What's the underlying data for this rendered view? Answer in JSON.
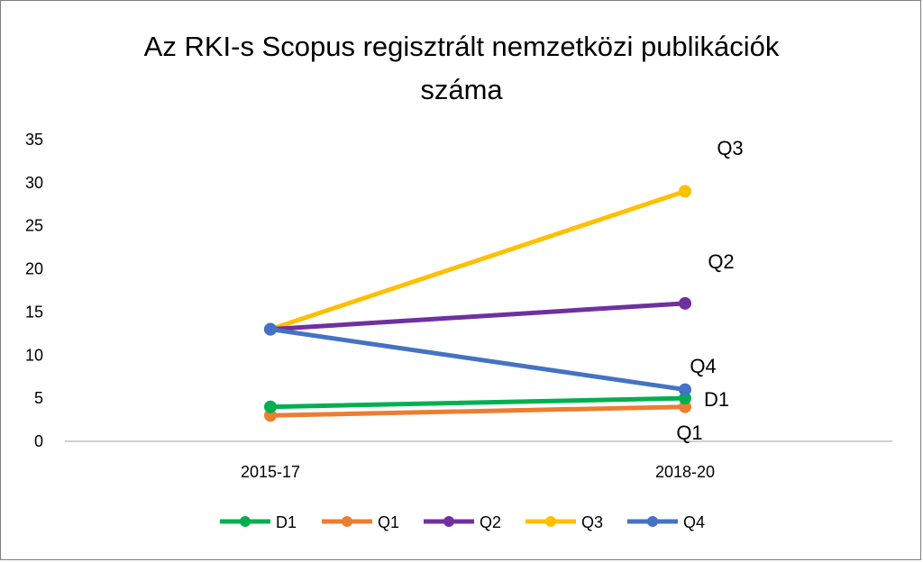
{
  "chart_data": {
    "type": "line",
    "title_lines": [
      "Az RKI-s Scopus regisztrált nemzetközi publikációk",
      "száma"
    ],
    "categories": [
      "2015-17",
      "2018-20"
    ],
    "ylim": [
      0,
      35
    ],
    "yticks": [
      0,
      5,
      10,
      15,
      20,
      25,
      30,
      35
    ],
    "grid": false,
    "legend_position": "bottom",
    "series": [
      {
        "name": "D1",
        "values": [
          4,
          5
        ],
        "color": "#00b050",
        "end_label": "D1"
      },
      {
        "name": "Q1",
        "values": [
          3,
          4
        ],
        "color": "#ed7d31",
        "end_label": "Q1"
      },
      {
        "name": "Q2",
        "values": [
          13,
          16
        ],
        "color": "#7030a0",
        "end_label": "Q2"
      },
      {
        "name": "Q3",
        "values": [
          13,
          29
        ],
        "color": "#ffc000",
        "end_label": "Q3"
      },
      {
        "name": "Q4",
        "values": [
          13,
          6
        ],
        "color": "#4472c4",
        "end_label": "Q4"
      }
    ]
  }
}
